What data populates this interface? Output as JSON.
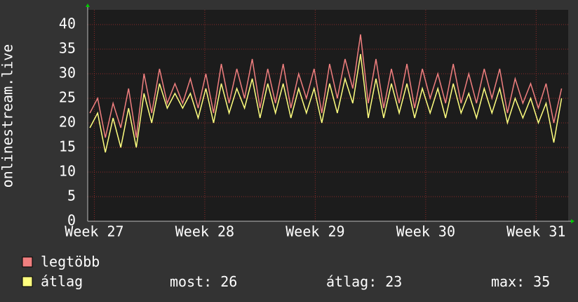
{
  "chart_data": {
    "type": "line",
    "ylabel": "onlinestream.live",
    "x": [
      26.96,
      27.03,
      27.1,
      27.17,
      27.24,
      27.31,
      27.38,
      27.45,
      27.52,
      27.59,
      27.66,
      27.73,
      27.8,
      27.87,
      27.94,
      28.01,
      28.08,
      28.15,
      28.22,
      28.29,
      28.36,
      28.43,
      28.5,
      28.57,
      28.64,
      28.71,
      28.78,
      28.85,
      28.92,
      28.99,
      29.06,
      29.13,
      29.2,
      29.27,
      29.34,
      29.41,
      29.48,
      29.55,
      29.62,
      29.69,
      29.76,
      29.83,
      29.9,
      29.97,
      30.04,
      30.11,
      30.18,
      30.25,
      30.32,
      30.39,
      30.46,
      30.53,
      30.6,
      30.67,
      30.74,
      30.81,
      30.88,
      30.95,
      31.02,
      31.09,
      31.16,
      31.23
    ],
    "series": [
      {
        "name": "legtöbb",
        "color": "#f07f7f",
        "values": [
          22,
          25,
          17,
          24,
          19,
          27,
          17,
          30,
          22,
          31,
          24,
          28,
          24,
          29,
          23,
          30,
          22,
          32,
          24,
          31,
          25,
          33,
          23,
          31,
          24,
          32,
          23,
          30,
          25,
          31,
          22,
          32,
          25,
          33,
          27,
          38,
          24,
          33,
          23,
          31,
          24,
          32,
          23,
          31,
          25,
          30,
          24,
          32,
          24,
          30,
          24,
          31,
          25,
          31,
          22,
          29,
          24,
          28,
          23,
          28,
          20,
          27
        ]
      },
      {
        "name": "átlag",
        "color": "#ffff7f",
        "values": [
          19,
          22,
          14,
          21,
          15,
          23,
          15,
          26,
          20,
          28,
          23,
          26,
          23,
          26,
          21,
          27,
          20,
          28,
          22,
          27,
          23,
          29,
          21,
          28,
          22,
          28,
          21,
          27,
          22,
          27,
          20,
          28,
          22,
          29,
          24,
          34,
          21,
          29,
          21,
          28,
          22,
          28,
          21,
          27,
          22,
          27,
          21,
          28,
          22,
          26,
          21,
          27,
          22,
          27,
          20,
          25,
          21,
          25,
          20,
          24,
          16,
          25
        ]
      }
    ],
    "xlim": [
      26.94,
      31.29
    ],
    "xticks": [
      {
        "value": 27,
        "label": "Week 27"
      },
      {
        "value": 28,
        "label": "Week 28"
      },
      {
        "value": 29,
        "label": "Week 29"
      },
      {
        "value": 30,
        "label": "Week 30"
      },
      {
        "value": 31,
        "label": "Week 31"
      }
    ],
    "ylim": [
      0,
      43
    ],
    "yticks": [
      0,
      5,
      10,
      15,
      20,
      25,
      30,
      35,
      40
    ],
    "grid": true,
    "stats": [
      {
        "label": "most:",
        "value": 26
      },
      {
        "label": "átlag:",
        "value": 23
      },
      {
        "label": "max:",
        "value": 35
      }
    ]
  }
}
